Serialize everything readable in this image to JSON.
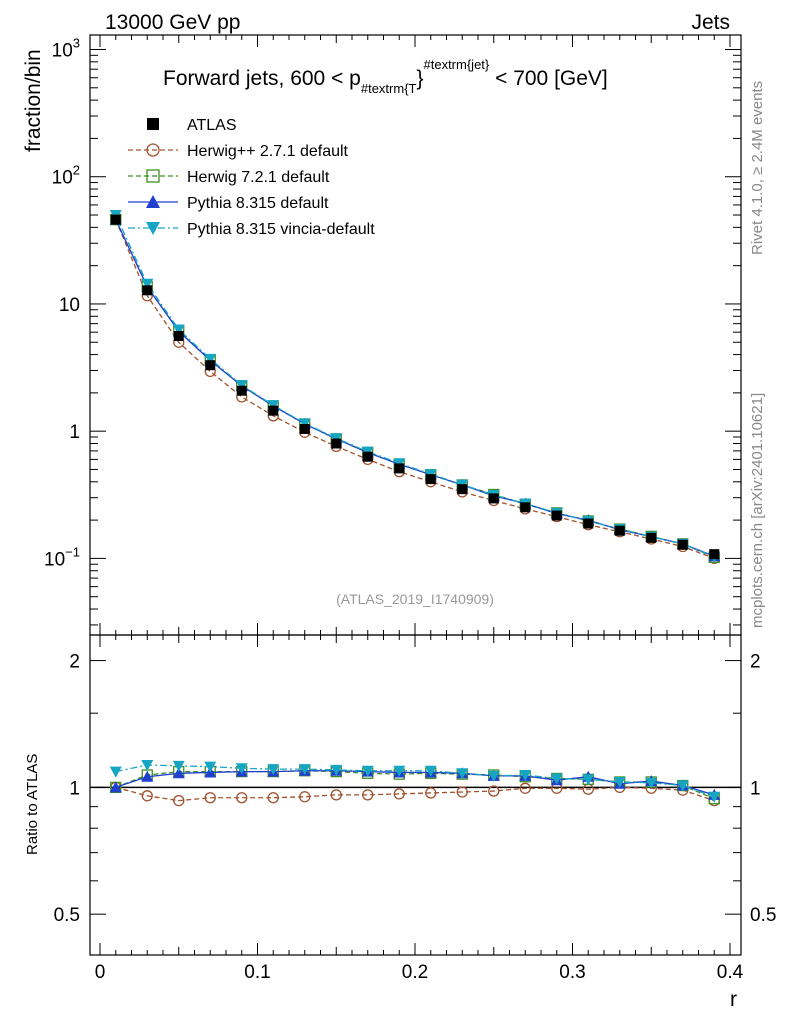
{
  "header": {
    "left": "13000 GeV pp",
    "right": "Jets",
    "side_top": "Rivet 4.1.0, ≥ 2.4M events",
    "side_bottom": "mcplots.cern.ch [arXiv:2401.10621]"
  },
  "chart_data": {
    "type": "line",
    "title": "Forward jets, 600 < p#textrm{T}^#textrm{jet} < 700 [GeV]",
    "title_parts": {
      "before": "Forward jets, 600 < p",
      "sub": "#textrm{T",
      "sup": "#textrm{jet",
      "brace": "}",
      "after": " < 700 [GeV]"
    },
    "analysis_label": "(ATLAS_2019_I1740909)",
    "xlabel": "r",
    "ylabel": "fraction/bin",
    "ratio_ylabel": "Ratio to ATLAS",
    "xlim": [
      0,
      0.4
    ],
    "ylim": [
      0.025,
      1300
    ],
    "yscale": "log",
    "ratio_ylim": [
      0.4,
      2.3
    ],
    "x_ticks": [
      "0",
      "0.1",
      "0.2",
      "0.3",
      "0.4"
    ],
    "y_ticks": [
      "10^-1",
      "1",
      "10",
      "10^2",
      "10^3"
    ],
    "ratio_ticks_left": [
      "0.5",
      "1",
      "2"
    ],
    "ratio_ticks_right": [
      "0.5",
      "1",
      "2"
    ],
    "x": [
      0.01,
      0.03,
      0.05,
      0.07,
      0.09,
      0.11,
      0.13,
      0.15,
      0.17,
      0.19,
      0.21,
      0.23,
      0.25,
      0.27,
      0.29,
      0.31,
      0.33,
      0.35,
      0.37,
      0.39
    ],
    "series": [
      {
        "name": "ATLAS",
        "color": "#000000",
        "marker": "square-filled",
        "line": "none",
        "values": [
          46,
          12.8,
          5.6,
          3.3,
          2.08,
          1.45,
          1.04,
          0.8,
          0.63,
          0.51,
          0.42,
          0.35,
          0.296,
          0.252,
          0.217,
          0.188,
          0.165,
          0.145,
          0.128,
          0.108
        ]
      },
      {
        "name": "Herwig++ 2.7.1 default",
        "color": "#a0522d",
        "marker": "circle-open",
        "line": "dashed",
        "values": [
          46,
          11.6,
          5.0,
          2.95,
          1.86,
          1.32,
          0.98,
          0.76,
          0.6,
          0.48,
          0.4,
          0.333,
          0.285,
          0.245,
          0.213,
          0.184,
          0.162,
          0.142,
          0.124,
          0.1
        ]
      },
      {
        "name": "Herwig 7.2.1 default",
        "color": "#3f8f1f",
        "marker": "square-open",
        "line": "dashed",
        "values": [
          46,
          13.7,
          6.1,
          3.6,
          2.27,
          1.58,
          1.14,
          0.87,
          0.68,
          0.55,
          0.455,
          0.378,
          0.318,
          0.267,
          0.228,
          0.197,
          0.17,
          0.149,
          0.13,
          0.102
        ]
      },
      {
        "name": "Pythia 8.315 default",
        "color": "#1f3fd0",
        "marker": "triangle-up",
        "line": "solid",
        "values": [
          46,
          13.6,
          6.1,
          3.6,
          2.27,
          1.58,
          1.14,
          0.87,
          0.68,
          0.55,
          0.455,
          0.378,
          0.31,
          0.27,
          0.225,
          0.2,
          0.168,
          0.148,
          0.13,
          0.104
        ]
      },
      {
        "name": "Pythia 8.315 vincia-default",
        "color": "#17a5c4",
        "marker": "triangle-down",
        "line": "dashdot",
        "values": [
          50,
          14.4,
          6.3,
          3.7,
          2.3,
          1.6,
          1.15,
          0.88,
          0.69,
          0.56,
          0.46,
          0.38,
          0.315,
          0.27,
          0.228,
          0.197,
          0.17,
          0.148,
          0.13,
          0.103
        ]
      }
    ],
    "ratios": [
      [
        1,
        1,
        1,
        1,
        1,
        1,
        1,
        1,
        1,
        1,
        1,
        1,
        1,
        1,
        1,
        1,
        1,
        1,
        1,
        1
      ],
      [
        1.0,
        0.955,
        0.93,
        0.945,
        0.945,
        0.945,
        0.95,
        0.96,
        0.96,
        0.965,
        0.97,
        0.975,
        0.98,
        0.995,
        0.995,
        0.99,
        1.0,
        0.995,
        0.985,
        0.93
      ],
      [
        1.0,
        1.07,
        1.09,
        1.09,
        1.09,
        1.09,
        1.095,
        1.09,
        1.08,
        1.075,
        1.08,
        1.075,
        1.07,
        1.06,
        1.05,
        1.045,
        1.03,
        1.03,
        1.01,
        0.94
      ],
      [
        1.0,
        1.06,
        1.08,
        1.085,
        1.09,
        1.09,
        1.095,
        1.095,
        1.09,
        1.085,
        1.085,
        1.08,
        1.065,
        1.065,
        1.04,
        1.06,
        1.02,
        1.035,
        1.01,
        0.96
      ],
      [
        1.09,
        1.13,
        1.125,
        1.12,
        1.11,
        1.105,
        1.105,
        1.1,
        1.095,
        1.095,
        1.095,
        1.08,
        1.065,
        1.07,
        1.05,
        1.045,
        1.03,
        1.025,
        1.01,
        0.95
      ]
    ]
  }
}
